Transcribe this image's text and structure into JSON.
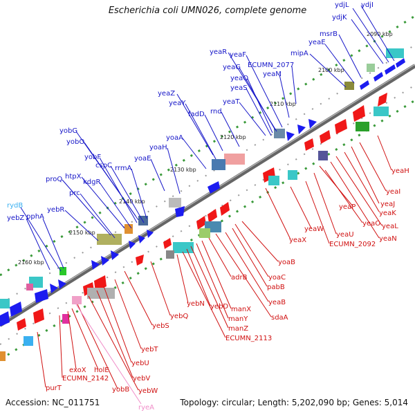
{
  "title": "Escherichia coli UMN026, complete genome",
  "footer": {
    "accession": "Accession: NC_011751",
    "summary": "Topology: circular; Length: 5,202,090 bp; Genes: 5,014"
  },
  "colors": {
    "top_label": "#1515c8",
    "bottom_label": "#d01010",
    "rna_label_light": "#3ab0f0",
    "rna_label_pink": "#f08cc8",
    "forward": "#1c1cf0",
    "reverse": "#f01818",
    "backbone": "#777777"
  },
  "kbp_ticks": [
    "2090 kbp",
    "2100 kbp",
    "2110 kbp",
    "2120 kbp",
    "2130 kbp",
    "2140 kbp",
    "2150 kbp",
    "2160 kbp"
  ],
  "top_labels": [
    "ydjL",
    "ydjI",
    "ydjK",
    "msrB",
    "yeaE",
    "mipA",
    "yeaR",
    "yeaF",
    "ECUMN_2077",
    "yeaG",
    "yeaM",
    "yeaQ",
    "yeaS",
    "yeaT",
    "yeaZ",
    "yeaY",
    "fadD",
    "rnd",
    "yoaA",
    "yoaH",
    "yoaE",
    "yobG",
    "yobO",
    "yobF",
    "cspC",
    "rrmA",
    "htpX",
    "kdgR",
    "proQ",
    "prc",
    "yebR",
    "rydB",
    "yebZ",
    "pphA"
  ],
  "bottom_labels": [
    "yeaH",
    "yeaI",
    "yeaJ",
    "yeaK",
    "yeaL",
    "yeaN",
    "yeaP",
    "yeaO",
    "yeaU",
    "yeaW",
    "ECUMN_2092",
    "yeaX",
    "yoaB",
    "yoaC",
    "pabB",
    "yeaB",
    "sdaA",
    "adrB",
    "manX",
    "manY",
    "manZ",
    "yebD",
    "ECUMN_2113",
    "yebN",
    "yebQ",
    "yebS",
    "yebT",
    "yebU",
    "yebV",
    "yebW",
    "yobB",
    "holE",
    "exoX",
    "ECUMN_2142",
    "purT",
    "ryeA"
  ]
}
